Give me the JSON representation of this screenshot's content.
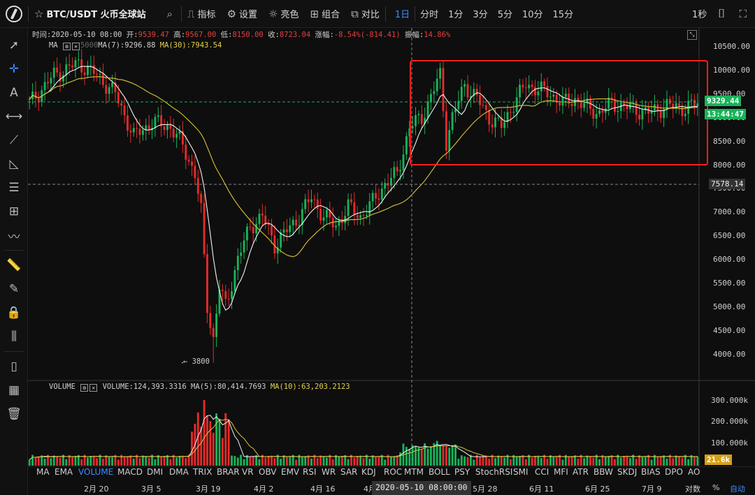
{
  "topbar": {
    "title": "BTC/USDT 火币全球站",
    "indicators_label": "指标",
    "settings_label": "设置",
    "theme_label": "亮色",
    "combo_label": "组合",
    "compare_label": "对比",
    "intervals": [
      "1日",
      "分时",
      "1分",
      "3分",
      "5分",
      "10分",
      "15分"
    ],
    "active_interval": "1日",
    "seconds_label": "1秒"
  },
  "ohlc": {
    "time": "时间:2020-05-10 08:00",
    "open_label": "开:",
    "open": "9539.47",
    "high_label": "高:",
    "high": "9567.00",
    "low_label": "低:",
    "low": "8150.00",
    "close_label": "收:",
    "close": "8723.04",
    "change_label": "涨幅:",
    "change": "-8.54%(-814.41)",
    "amp_label": "振幅:",
    "amp": "14.86%"
  },
  "ma_legend": {
    "name": "MA",
    "mid": "5000",
    "ma7": "MA(7):9296.88",
    "ma30": "MA(30):7943.54"
  },
  "vol_legend": {
    "name": "VOLUME",
    "value": "VOLUME:124,393.3316",
    "ma5": "MA(5):80,414.7693",
    "ma10": "MA(10):63,203.2123"
  },
  "price_axis": [
    "10500.00",
    "10000.00",
    "9500.00",
    "9000.00",
    "8500.00",
    "8000.00",
    "7500.00",
    "7000.00",
    "6500.00",
    "6000.00",
    "5500.00",
    "5000.00",
    "4500.00",
    "4000.00"
  ],
  "price_tags": {
    "current": "9329.44",
    "countdown": "13:44:47",
    "crosshair": "7578.14"
  },
  "vol_axis": [
    "300.000k",
    "200.000k",
    "100.000k"
  ],
  "vol_tag": "21.6k",
  "low_marker": "← 3800",
  "indicators": [
    "MA",
    "EMA",
    "VOLUME",
    "MACD",
    "DMI",
    "DMA",
    "TRIX",
    "BRAR",
    "VR",
    "OBV",
    "EMV",
    "RSI",
    "WR",
    "SAR",
    "KDJ",
    "ROC",
    "MTM",
    "BOLL",
    "PSY",
    "StochRSI",
    "SMI",
    "CCI",
    "MFI",
    "ATR",
    "BBW",
    "SKDJ",
    "BIAS",
    "DPO",
    "AO"
  ],
  "active_indicator": "VOLUME",
  "dates": [
    "2月 20",
    "3月 5",
    "3月 19",
    "4月 2",
    "4月 16",
    "4月",
    "5月 28",
    "6月 11",
    "6月 25",
    "7月 9"
  ],
  "crosshair_date": "2020-05-10 08:00:00",
  "bottom_right": {
    "log_label": "对数",
    "pct_label": "%",
    "auto_label": "自动"
  },
  "colors": {
    "up": "#19b35a",
    "down": "#e82a2a",
    "ma7": "#f2f2f2",
    "ma30": "#d8c53a",
    "accent": "#3f8cff",
    "box": "#ff1e1e"
  }
}
